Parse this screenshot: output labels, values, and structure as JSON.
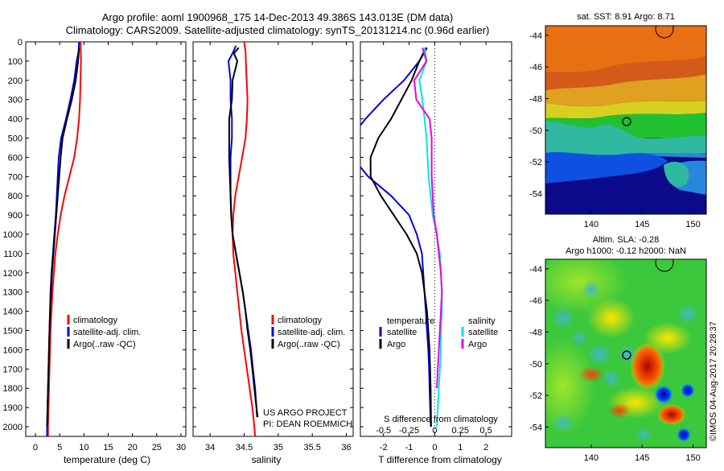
{
  "title_line1": "Argo profile: aoml 1900968_175 14-Dec-2013 49.386S 143.013E (DM data)",
  "title_line2": "Climatology: CARS2009. Satellite-adjusted climatology: synTS_20131214.nc (0.96d earlier)",
  "credit": "US ARGO PROJECT",
  "pi": "PI: DEAN ROEMMICH",
  "watermark": "©IMOS 04-Aug-2017 20:28:37",
  "colors": {
    "climatology": "#ff0000",
    "satellite": "#0000e6",
    "argo": "#000000",
    "sal_satellite": "#00e5e5",
    "sal_argo": "#e600e6"
  },
  "chart_data": [
    {
      "type": "line",
      "panel": "temperature",
      "xlabel": "temperature (deg C)",
      "xlim": [
        -2,
        31
      ],
      "xticks": [
        "0",
        "5",
        "10",
        "15",
        "20",
        "25",
        "30"
      ],
      "xtick_values": [
        0,
        5,
        10,
        15,
        20,
        25,
        30
      ],
      "ylim": [
        0,
        2050
      ],
      "yticks": [
        "0",
        "100",
        "200",
        "300",
        "400",
        "500",
        "600",
        "700",
        "800",
        "900",
        "1000",
        "1100",
        "1200",
        "1300",
        "1400",
        "1500",
        "1600",
        "1700",
        "1800",
        "1900",
        "2000"
      ],
      "legend": [
        "climatology",
        "satellite-adj. clim.",
        "Argo(..raw -QC)"
      ],
      "series": [
        {
          "name": "climatology",
          "color": "#ff0000",
          "points": [
            [
              9.3,
              0
            ],
            [
              9.4,
              100
            ],
            [
              9.3,
              200
            ],
            [
              9.2,
              300
            ],
            [
              9.0,
              400
            ],
            [
              8.6,
              500
            ],
            [
              8.0,
              600
            ],
            [
              7.0,
              700
            ],
            [
              6.0,
              800
            ],
            [
              5.2,
              900
            ],
            [
              4.6,
              1000
            ],
            [
              4.1,
              1100
            ],
            [
              3.8,
              1200
            ],
            [
              3.5,
              1300
            ],
            [
              3.3,
              1400
            ],
            [
              3.1,
              1500
            ],
            [
              3.0,
              1600
            ],
            [
              2.9,
              1700
            ],
            [
              2.8,
              1800
            ],
            [
              2.7,
              1900
            ],
            [
              2.6,
              2000
            ],
            [
              2.6,
              2050
            ]
          ]
        },
        {
          "name": "satellite-adj. clim.",
          "color": "#0000e6",
          "points": [
            [
              9.0,
              0
            ],
            [
              8.9,
              50
            ],
            [
              8.5,
              100
            ],
            [
              8.0,
              200
            ],
            [
              7.2,
              300
            ],
            [
              6.3,
              400
            ],
            [
              5.3,
              500
            ],
            [
              4.8,
              600
            ],
            [
              4.6,
              700
            ],
            [
              4.4,
              800
            ],
            [
              4.2,
              900
            ],
            [
              3.9,
              1000
            ],
            [
              3.6,
              1100
            ],
            [
              3.3,
              1200
            ],
            [
              3.1,
              1300
            ],
            [
              3.0,
              1400
            ],
            [
              2.9,
              1500
            ],
            [
              2.8,
              1600
            ],
            [
              2.7,
              1700
            ],
            [
              2.6,
              1800
            ],
            [
              2.5,
              1900
            ],
            [
              2.4,
              2000
            ],
            [
              2.4,
              2050
            ]
          ]
        },
        {
          "name": "Argo(..raw -QC)",
          "color": "#000000",
          "points": [
            [
              9.0,
              30
            ],
            [
              8.8,
              100
            ],
            [
              8.3,
              200
            ],
            [
              7.5,
              300
            ],
            [
              6.5,
              400
            ],
            [
              5.6,
              500
            ],
            [
              5.2,
              600
            ],
            [
              4.9,
              700
            ],
            [
              4.6,
              800
            ],
            [
              4.3,
              900
            ],
            [
              4.0,
              1000
            ],
            [
              3.7,
              1100
            ],
            [
              3.4,
              1200
            ],
            [
              3.2,
              1300
            ],
            [
              3.0,
              1400
            ],
            [
              2.9,
              1500
            ],
            [
              2.8,
              1600
            ],
            [
              2.7,
              1700
            ],
            [
              2.6,
              1800
            ],
            [
              2.5,
              1900
            ],
            [
              2.4,
              2000
            ]
          ]
        }
      ]
    },
    {
      "type": "line",
      "panel": "salinity",
      "xlabel": "salinity",
      "xlim": [
        33.75,
        36.1
      ],
      "xticks": [
        "34",
        "34.5",
        "35",
        "35.5",
        "36"
      ],
      "xtick_values": [
        34,
        34.5,
        35,
        35.5,
        36
      ],
      "ylim": [
        0,
        2050
      ],
      "legend": [
        "climatology",
        "satellite-adj. clim.",
        "Argo(..raw -QC)"
      ],
      "series": [
        {
          "name": "climatology",
          "color": "#ff0000",
          "points": [
            [
              34.5,
              0
            ],
            [
              34.52,
              50
            ],
            [
              34.53,
              150
            ],
            [
              34.55,
              300
            ],
            [
              34.54,
              400
            ],
            [
              34.52,
              500
            ],
            [
              34.47,
              600
            ],
            [
              34.42,
              700
            ],
            [
              34.37,
              800
            ],
            [
              34.34,
              900
            ],
            [
              34.33,
              1000
            ],
            [
              34.34,
              1100
            ],
            [
              34.37,
              1200
            ],
            [
              34.4,
              1300
            ],
            [
              34.43,
              1400
            ],
            [
              34.46,
              1500
            ],
            [
              34.5,
              1600
            ],
            [
              34.54,
              1700
            ],
            [
              34.58,
              1800
            ],
            [
              34.62,
              1900
            ],
            [
              34.65,
              2000
            ],
            [
              34.66,
              2050
            ]
          ]
        },
        {
          "name": "satellite-adj. clim.",
          "color": "#0000e6",
          "points": [
            [
              34.38,
              20
            ],
            [
              34.33,
              60
            ],
            [
              34.27,
              100
            ],
            [
              34.3,
              200
            ],
            [
              34.3,
              300
            ],
            [
              34.32,
              400
            ],
            [
              34.32,
              500
            ],
            [
              34.3,
              600
            ],
            [
              34.3,
              700
            ],
            [
              34.3,
              800
            ],
            [
              34.31,
              900
            ],
            [
              34.33,
              1000
            ],
            [
              34.38,
              1100
            ],
            [
              34.43,
              1200
            ],
            [
              34.48,
              1300
            ],
            [
              34.52,
              1400
            ],
            [
              34.56,
              1500
            ],
            [
              34.6,
              1600
            ],
            [
              34.63,
              1700
            ],
            [
              34.66,
              1800
            ],
            [
              34.68,
              1900
            ],
            [
              34.7,
              1950
            ]
          ]
        },
        {
          "name": "Argo(..raw -QC)",
          "color": "#000000",
          "points": [
            [
              34.42,
              30
            ],
            [
              34.35,
              60
            ],
            [
              34.4,
              100
            ],
            [
              34.33,
              200
            ],
            [
              34.32,
              300
            ],
            [
              34.28,
              400
            ],
            [
              34.28,
              500
            ],
            [
              34.28,
              600
            ],
            [
              34.29,
              700
            ],
            [
              34.3,
              800
            ],
            [
              34.31,
              900
            ],
            [
              34.33,
              1000
            ],
            [
              34.38,
              1100
            ],
            [
              34.43,
              1200
            ],
            [
              34.48,
              1300
            ],
            [
              34.52,
              1400
            ],
            [
              34.55,
              1500
            ],
            [
              34.59,
              1600
            ],
            [
              34.62,
              1700
            ],
            [
              34.65,
              1800
            ],
            [
              34.68,
              1900
            ],
            [
              34.69,
              1950
            ]
          ]
        }
      ]
    },
    {
      "type": "line",
      "panel": "difference",
      "xlabel": "T difference from climatology",
      "xlabel_top": "S difference from climatology",
      "xlim": [
        -2.9,
        3.0
      ],
      "xticks": [
        "-2",
        "-1",
        "0",
        "1",
        "2"
      ],
      "xtick_values": [
        -2,
        -1,
        0,
        1,
        2
      ],
      "sticks": [
        "-0.5",
        "-0.25",
        "0",
        "0.25",
        "0.5"
      ],
      "stick_values": [
        -0.5,
        -0.25,
        0,
        0.25,
        0.5
      ],
      "legend_temperature": [
        "temperature",
        "satellite",
        "Argo"
      ],
      "legend_salinity": [
        "salinity",
        "satellite",
        "Argo"
      ],
      "series": [
        {
          "name": "temperature satellite",
          "color": "#0000e6",
          "points": [
            [
              -0.35,
              30
            ],
            [
              -0.6,
              100
            ],
            [
              -1.2,
              200
            ],
            [
              -2.0,
              300
            ],
            [
              -2.7,
              400
            ],
            [
              -3.3,
              500
            ],
            [
              -3.2,
              600
            ],
            [
              -2.6,
              700
            ],
            [
              -1.7,
              800
            ],
            [
              -1.0,
              900
            ],
            [
              -0.7,
              1000
            ],
            [
              -0.5,
              1100
            ],
            [
              -0.45,
              1200
            ],
            [
              -0.4,
              1300
            ],
            [
              -0.35,
              1400
            ],
            [
              -0.3,
              1500
            ],
            [
              -0.25,
              1600
            ],
            [
              -0.22,
              1700
            ],
            [
              -0.2,
              1800
            ],
            [
              -0.18,
              1900
            ],
            [
              -0.15,
              2000
            ]
          ]
        },
        {
          "name": "temperature Argo",
          "color": "#000000",
          "points": [
            [
              -0.3,
              30
            ],
            [
              -0.6,
              100
            ],
            [
              -0.9,
              200
            ],
            [
              -1.7,
              400
            ],
            [
              -2.2,
              500
            ],
            [
              -2.5,
              600
            ],
            [
              -2.5,
              700
            ],
            [
              -2.1,
              800
            ],
            [
              -1.6,
              900
            ],
            [
              -1.1,
              1000
            ],
            [
              -0.7,
              1100
            ],
            [
              -0.5,
              1200
            ],
            [
              -0.4,
              1300
            ],
            [
              -0.3,
              1400
            ],
            [
              -0.25,
              1500
            ],
            [
              -0.2,
              1600
            ],
            [
              -0.18,
              1700
            ],
            [
              -0.16,
              1800
            ],
            [
              -0.15,
              1900
            ],
            [
              -0.14,
              2000
            ]
          ]
        },
        {
          "name": "salinity satellite",
          "color": "#00e5e5",
          "points": [
            [
              -0.1,
              30
            ],
            [
              -0.08,
              100
            ],
            [
              -0.15,
              200
            ],
            [
              -0.12,
              300
            ],
            [
              -0.1,
              400
            ],
            [
              -0.08,
              500
            ],
            [
              -0.07,
              600
            ],
            [
              -0.06,
              700
            ],
            [
              -0.04,
              800
            ],
            [
              -0.02,
              900
            ],
            [
              0.02,
              1000
            ],
            [
              0.05,
              1100
            ],
            [
              0.06,
              1200
            ],
            [
              0.07,
              1300
            ],
            [
              0.07,
              1400
            ],
            [
              0.06,
              1500
            ],
            [
              0.06,
              1600
            ],
            [
              0.05,
              1700
            ],
            [
              0.04,
              1800
            ],
            [
              0.03,
              1900
            ],
            [
              0.02,
              2000
            ]
          ]
        },
        {
          "name": "salinity Argo",
          "color": "#e600e6",
          "points": [
            [
              -0.12,
              30
            ],
            [
              -0.08,
              100
            ],
            [
              -0.2,
              200
            ],
            [
              -0.18,
              300
            ],
            [
              -0.05,
              400
            ],
            [
              -0.03,
              500
            ],
            [
              -0.03,
              600
            ],
            [
              -0.03,
              700
            ],
            [
              -0.02,
              800
            ],
            [
              -0.01,
              900
            ],
            [
              0.02,
              1000
            ],
            [
              0.04,
              1100
            ],
            [
              0.06,
              1200
            ],
            [
              0.07,
              1300
            ],
            [
              0.06,
              1400
            ],
            [
              0.05,
              1500
            ],
            [
              0.04,
              1600
            ],
            [
              0.03,
              1700
            ],
            [
              0.02,
              1800
            ]
          ]
        }
      ]
    },
    {
      "type": "heatmap",
      "panel": "sst_map",
      "title": "sat. SST: 8.91  Argo: 8.71",
      "xticks": [
        "140",
        "145",
        "150"
      ],
      "yticks": [
        "-44",
        "-46",
        "-48",
        "-50",
        "-52",
        "-54"
      ],
      "xlim": [
        135.5,
        151.3
      ],
      "ylim": [
        -55.3,
        -43.4
      ],
      "profile_marker": [
        143.013,
        -49.386
      ]
    },
    {
      "type": "heatmap",
      "panel": "sla_map",
      "title": "Altim. SLA: -0.28",
      "subtitle": "Argo h1000: -0.12 h2000: NaN",
      "xticks": [
        "140",
        "145",
        "150"
      ],
      "yticks": [
        "-44",
        "-46",
        "-48",
        "-50",
        "-52",
        "-54"
      ],
      "xlim": [
        135.5,
        151.3
      ],
      "ylim": [
        -55.3,
        -43.4
      ],
      "profile_marker": [
        143.013,
        -49.386
      ]
    }
  ]
}
